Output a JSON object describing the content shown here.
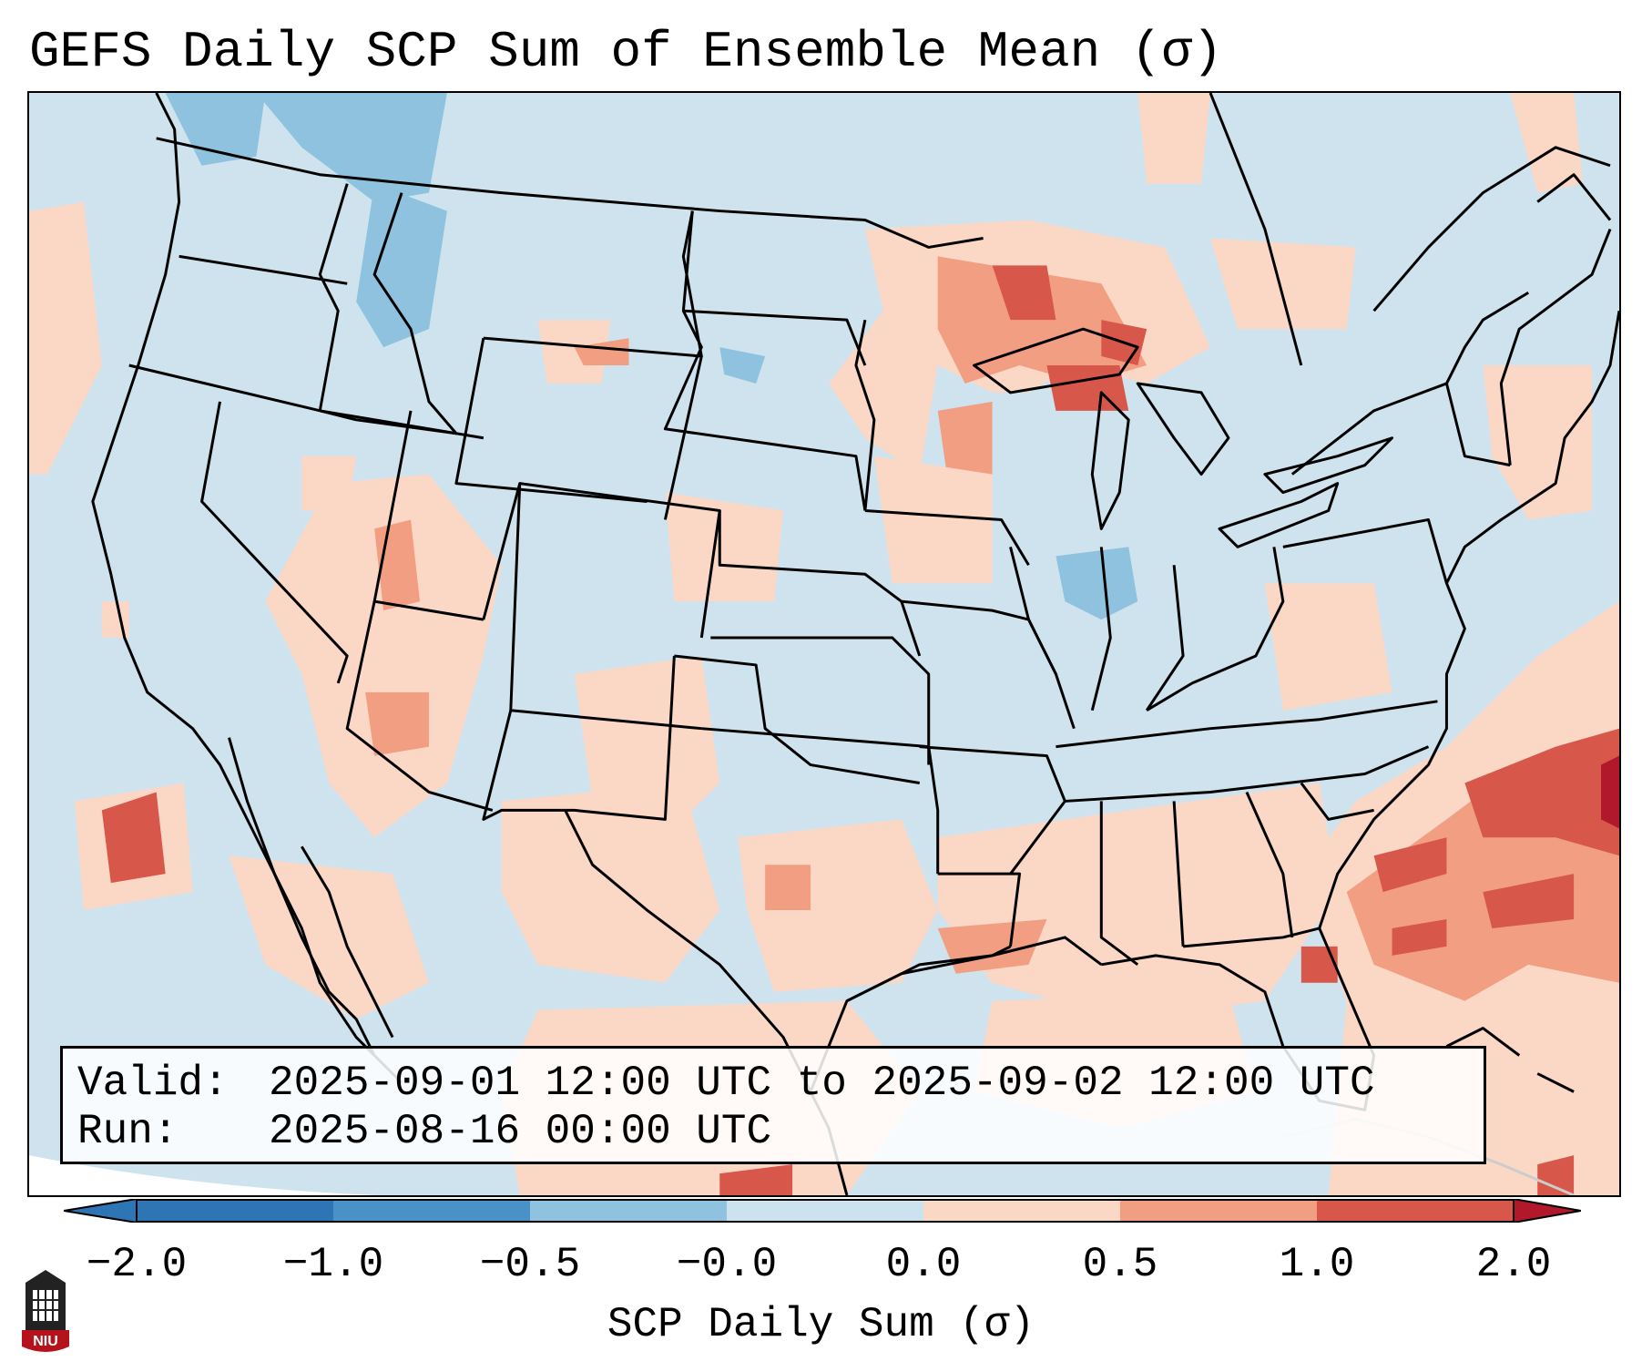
{
  "title": "GEFS Daily SCP Sum of Ensemble Mean (σ)",
  "info": {
    "valid_label": "Valid:",
    "valid_value": "2025-09-01 12:00 UTC to 2025-09-02 12:00 UTC",
    "run_label": "Run:",
    "run_value": "2025-08-16 00:00 UTC"
  },
  "colorbar": {
    "label": "SCP Daily Sum (σ)",
    "ticks": [
      "−2.0",
      "−1.0",
      "−0.5",
      "−0.0",
      "0.0",
      "0.5",
      "1.0",
      "2.0"
    ],
    "colors": [
      "#2e75b6",
      "#4a91c8",
      "#8ec2df",
      "#cde2ef",
      "#ffffff",
      "#fbd7c6",
      "#f29e82",
      "#d7574a"
    ],
    "extend_low_color": "#2e75b6",
    "extend_high_color": "#b2182b"
  },
  "logo": {
    "text": "NIU",
    "icon": "university-tower-icon",
    "color": "#b5121b"
  }
}
